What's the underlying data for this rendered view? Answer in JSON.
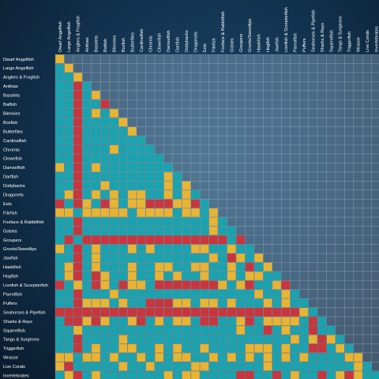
{
  "chart_data": {
    "type": "heatmap",
    "layout": "lower-triangular compatibility matrix",
    "title": "",
    "categories": [
      "Dwarf Angelfish",
      "Large Angelfish",
      "Anglers & Frogfish",
      "Anthias",
      "Basslets",
      "Batfish",
      "Blennies",
      "Boxfish",
      "Butterflies",
      "Cardinalfish",
      "Chromis",
      "Clownfish",
      "Damselfish",
      "Dartfish",
      "Dottybacks",
      "Dragonets",
      "Eels",
      "Filefish",
      "Foxface & Rabbitfish",
      "Gobies",
      "Groupers",
      "Grunts/Sweetlips",
      "Hawkfish",
      "Hogfish",
      "Jawfish",
      "Lionfish & Scorpionfish",
      "Parrotfish",
      "Puffers",
      "Seahorses & Pipefish",
      "Sharks & Rays",
      "Squirrelfish",
      "Tangs & Surgeons",
      "Triggerfish",
      "Wrasse",
      "Live Corals",
      "Invertebrates"
    ],
    "row_order": [
      "Dwarf Angelfish",
      "Large Angelfish",
      "Anglers & Frogfish",
      "Anthias",
      "Basslets",
      "Batfish",
      "Blennies",
      "Boxfish",
      "Butterflies",
      "Cardinalfish",
      "Chromis",
      "Clownfish",
      "Damselfish",
      "Dartfish",
      "Dottybacks",
      "Dragonets",
      "Eels",
      "Filefish",
      "Foxface & Rabbitfish",
      "Gobies",
      "Groupers",
      "Grunts/Sweetlips",
      "Jawfish",
      "Hawkfish",
      "Hogfish",
      "Lionfish & Scorpionfish",
      "Parrotfish",
      "Puffers",
      "Seahorses & Pipefish",
      "Sharks & Rays",
      "Squirrelfish",
      "Tangs & Surgeons",
      "Triggerfish",
      "Wrasse",
      "Live Corals",
      "Invertebrates"
    ],
    "levels": {
      "1": "teal",
      "2": "gold",
      "3": "red"
    },
    "colors": {
      "1": "#1aa3ae",
      "2": "#e8b434",
      "3": "#c8363d"
    },
    "matrix": [
      [
        2
      ],
      [
        1,
        2
      ],
      [
        1,
        1,
        2
      ],
      [
        1,
        1,
        3,
        1
      ],
      [
        1,
        1,
        3,
        1,
        2
      ],
      [
        1,
        1,
        3,
        1,
        1,
        3
      ],
      [
        1,
        1,
        3,
        1,
        2,
        1,
        2
      ],
      [
        1,
        1,
        3,
        1,
        1,
        1,
        1,
        2
      ],
      [
        1,
        1,
        3,
        1,
        1,
        1,
        1,
        1,
        2
      ],
      [
        1,
        1,
        3,
        1,
        1,
        1,
        1,
        1,
        1,
        1
      ],
      [
        1,
        1,
        3,
        1,
        1,
        1,
        2,
        1,
        1,
        1,
        1
      ],
      [
        1,
        1,
        3,
        1,
        1,
        1,
        1,
        1,
        1,
        1,
        1,
        1
      ],
      [
        2,
        1,
        3,
        1,
        2,
        1,
        1,
        1,
        1,
        1,
        1,
        1,
        1
      ],
      [
        1,
        1,
        3,
        1,
        1,
        1,
        1,
        1,
        1,
        1,
        1,
        1,
        2,
        1
      ],
      [
        1,
        1,
        3,
        1,
        1,
        2,
        1,
        1,
        1,
        1,
        1,
        1,
        2,
        1,
        2
      ],
      [
        1,
        2,
        3,
        1,
        2,
        1,
        2,
        1,
        2,
        2,
        1,
        1,
        2,
        1,
        2,
        1
      ],
      [
        3,
        1,
        3,
        2,
        1,
        3,
        2,
        1,
        2,
        2,
        3,
        3,
        3,
        2,
        2,
        3,
        1
      ],
      [
        2,
        2,
        1,
        2,
        2,
        2,
        2,
        2,
        1,
        2,
        2,
        2,
        2,
        1,
        2,
        2,
        1,
        2
      ],
      [
        1,
        1,
        3,
        1,
        1,
        1,
        1,
        1,
        1,
        1,
        1,
        1,
        1,
        1,
        1,
        1,
        1,
        2,
        1
      ],
      [
        1,
        1,
        3,
        1,
        1,
        1,
        1,
        1,
        1,
        1,
        1,
        1,
        1,
        1,
        1,
        1,
        1,
        2,
        1,
        1
      ],
      [
        1,
        3,
        1,
        3,
        3,
        3,
        3,
        3,
        3,
        3,
        3,
        3,
        3,
        3,
        3,
        3,
        3,
        3,
        3,
        1,
        3
      ],
      [
        2,
        1,
        3,
        1,
        2,
        1,
        1,
        1,
        2,
        1,
        2,
        1,
        1,
        1,
        1,
        2,
        2,
        1,
        1,
        2,
        1,
        1
      ],
      [
        1,
        1,
        3,
        1,
        2,
        1,
        1,
        1,
        1,
        1,
        1,
        1,
        1,
        1,
        1,
        1,
        1,
        2,
        1,
        3,
        2,
        1,
        2
      ],
      [
        1,
        2,
        3,
        1,
        2,
        1,
        1,
        1,
        2,
        1,
        1,
        2,
        2,
        1,
        1,
        2,
        2,
        1,
        1,
        2,
        1,
        3,
        1,
        2
      ],
      [
        1,
        2,
        3,
        1,
        3,
        2,
        1,
        1,
        2,
        1,
        1,
        2,
        1,
        2,
        1,
        1,
        2,
        1,
        1,
        2,
        1,
        2,
        2,
        1,
        1
      ],
      [
        3,
        1,
        2,
        1,
        3,
        2,
        1,
        3,
        2,
        2,
        1,
        3,
        3,
        3,
        3,
        3,
        3,
        3,
        2,
        1,
        2,
        3,
        1,
        1,
        2,
        3
      ],
      [
        1,
        1,
        3,
        1,
        1,
        1,
        2,
        1,
        1,
        1,
        1,
        1,
        1,
        1,
        1,
        1,
        1,
        1,
        1,
        1,
        1,
        1,
        2,
        1,
        1,
        2,
        1
      ],
      [
        1,
        1,
        3,
        2,
        2,
        2,
        1,
        2,
        1,
        1,
        3,
        3,
        3,
        2,
        2,
        1,
        2,
        2,
        1,
        2,
        1,
        1,
        1,
        2,
        1,
        2,
        1,
        1
      ],
      [
        3,
        3,
        3,
        3,
        3,
        3,
        3,
        3,
        3,
        3,
        3,
        3,
        3,
        3,
        3,
        3,
        3,
        3,
        3,
        3,
        3,
        3,
        3,
        3,
        3,
        3,
        3,
        2,
        1
      ],
      [
        1,
        3,
        3,
        2,
        3,
        2,
        1,
        1,
        2,
        3,
        1,
        2,
        1,
        2,
        2,
        1,
        3,
        3,
        1,
        1,
        2,
        3,
        1,
        2,
        2,
        2,
        2,
        1,
        3,
        1
      ],
      [
        1,
        1,
        2,
        1,
        1,
        1,
        1,
        1,
        1,
        1,
        1,
        1,
        1,
        1,
        1,
        1,
        1,
        1,
        1,
        1,
        2,
        1,
        1,
        3,
        1,
        2,
        1,
        1,
        3,
        1,
        1
      ],
      [
        1,
        1,
        3,
        1,
        1,
        1,
        1,
        2,
        1,
        1,
        1,
        1,
        1,
        1,
        1,
        1,
        1,
        1,
        1,
        1,
        1,
        1,
        1,
        1,
        1,
        1,
        2,
        1,
        2,
        3,
        2,
        1
      ],
      [
        1,
        1,
        3,
        1,
        2,
        1,
        1,
        2,
        2,
        1,
        1,
        2,
        1,
        2,
        1,
        1,
        2,
        1,
        1,
        1,
        1,
        2,
        2,
        2,
        1,
        2,
        1,
        1,
        3,
        3,
        1,
        2,
        1
      ],
      [
        2,
        2,
        1,
        2,
        2,
        1,
        2,
        1,
        1,
        2,
        1,
        2,
        1,
        2,
        2,
        1,
        1,
        2,
        1,
        2,
        1,
        2,
        1,
        2,
        1,
        2,
        1,
        2,
        1,
        1,
        1,
        1,
        2,
        2
      ],
      [
        2,
        3,
        1,
        1,
        1,
        1,
        1,
        2,
        1,
        1,
        2,
        1,
        1,
        1,
        1,
        2,
        2,
        1,
        1,
        1,
        1,
        1,
        1,
        2,
        1,
        1,
        1,
        1,
        1,
        1,
        1,
        1,
        1,
        2,
        1
      ],
      [
        1,
        2,
        3,
        1,
        2,
        1,
        1,
        1,
        1,
        1,
        1,
        1,
        2,
        1,
        2,
        2,
        1,
        1,
        1,
        1,
        3,
        3,
        1,
        1,
        3,
        1,
        2,
        1,
        1,
        3,
        1,
        2,
        3,
        2,
        1,
        1
      ]
    ]
  }
}
